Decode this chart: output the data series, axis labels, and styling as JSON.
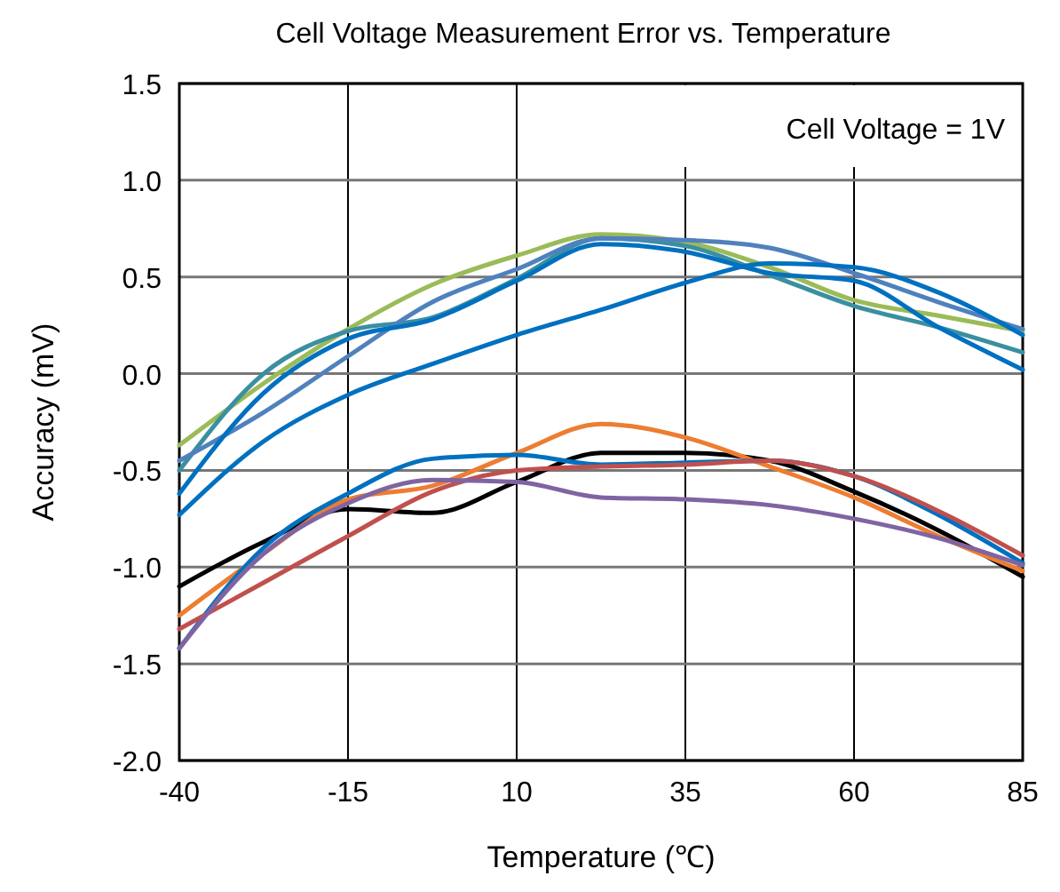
{
  "chart_data": {
    "type": "line",
    "title": "Cell Voltage Measurement Error vs. Temperature",
    "xlabel": "Temperature (℃)",
    "ylabel": "Accuracy (mV)",
    "annotations": [
      "Cell Voltage = 1V"
    ],
    "x": [
      -40,
      -27.5,
      -15,
      -2.5,
      10,
      22.5,
      35,
      47.5,
      60,
      72.5,
      85
    ],
    "xlim": [
      -40,
      85
    ],
    "xticks": [
      -40,
      -15,
      10,
      35,
      60,
      85
    ],
    "ylim": [
      -2,
      1.5
    ],
    "yticks": [
      {
        "value": -2,
        "label": "-2.0"
      },
      -1.5,
      {
        "value": -1,
        "label": "-1.0"
      },
      -0.5,
      {
        "value": 0,
        "label": "0.0"
      },
      0.5,
      {
        "value": 1,
        "label": "1.0"
      },
      1.5
    ],
    "grid": true,
    "marker": "none",
    "line_style": "solid",
    "series": [
      {
        "color": "#9bbb59",
        "values": [
          -0.37,
          -0.05,
          0.23,
          0.46,
          0.61,
          0.72,
          0.68,
          0.55,
          0.38,
          0.3,
          0.22
        ]
      },
      {
        "color": "#3a8fa0",
        "values": [
          -0.5,
          0.0,
          0.22,
          0.29,
          0.49,
          0.7,
          0.66,
          0.51,
          0.35,
          0.24,
          0.11
        ]
      },
      {
        "color": "#4f81bd",
        "values": [
          -0.45,
          -0.2,
          0.09,
          0.37,
          0.54,
          0.7,
          0.69,
          0.65,
          0.52,
          0.37,
          0.23
        ]
      },
      {
        "color": "#0070c0",
        "values": [
          -0.62,
          -0.1,
          0.18,
          0.28,
          0.48,
          0.67,
          0.63,
          0.52,
          0.48,
          0.24,
          0.02
        ]
      },
      {
        "color": "#0070c0",
        "values": [
          -0.73,
          -0.35,
          -0.11,
          0.05,
          0.2,
          0.33,
          0.47,
          0.57,
          0.55,
          0.42,
          0.2
        ]
      },
      {
        "color": "#000000",
        "values": [
          -1.1,
          -0.87,
          -0.7,
          -0.72,
          -0.56,
          -0.41,
          -0.41,
          -0.45,
          -0.61,
          -0.81,
          -1.05
        ]
      },
      {
        "color": "#ed7d31",
        "values": [
          -1.25,
          -0.93,
          -0.65,
          -0.58,
          -0.41,
          -0.26,
          -0.33,
          -0.48,
          -0.64,
          -0.84,
          -1.02
        ]
      },
      {
        "color": "#0070c0",
        "values": [
          -1.42,
          -0.9,
          -0.62,
          -0.44,
          -0.42,
          -0.47,
          -0.46,
          -0.45,
          -0.53,
          -0.73,
          -0.98
        ]
      },
      {
        "color": "#c0504d",
        "values": [
          -1.32,
          -1.08,
          -0.84,
          -0.61,
          -0.5,
          -0.48,
          -0.47,
          -0.45,
          -0.53,
          -0.71,
          -0.94
        ]
      },
      {
        "color": "#8064a2",
        "values": [
          -1.42,
          -0.93,
          -0.67,
          -0.55,
          -0.56,
          -0.64,
          -0.65,
          -0.68,
          -0.75,
          -0.85,
          -0.99
        ]
      }
    ]
  }
}
